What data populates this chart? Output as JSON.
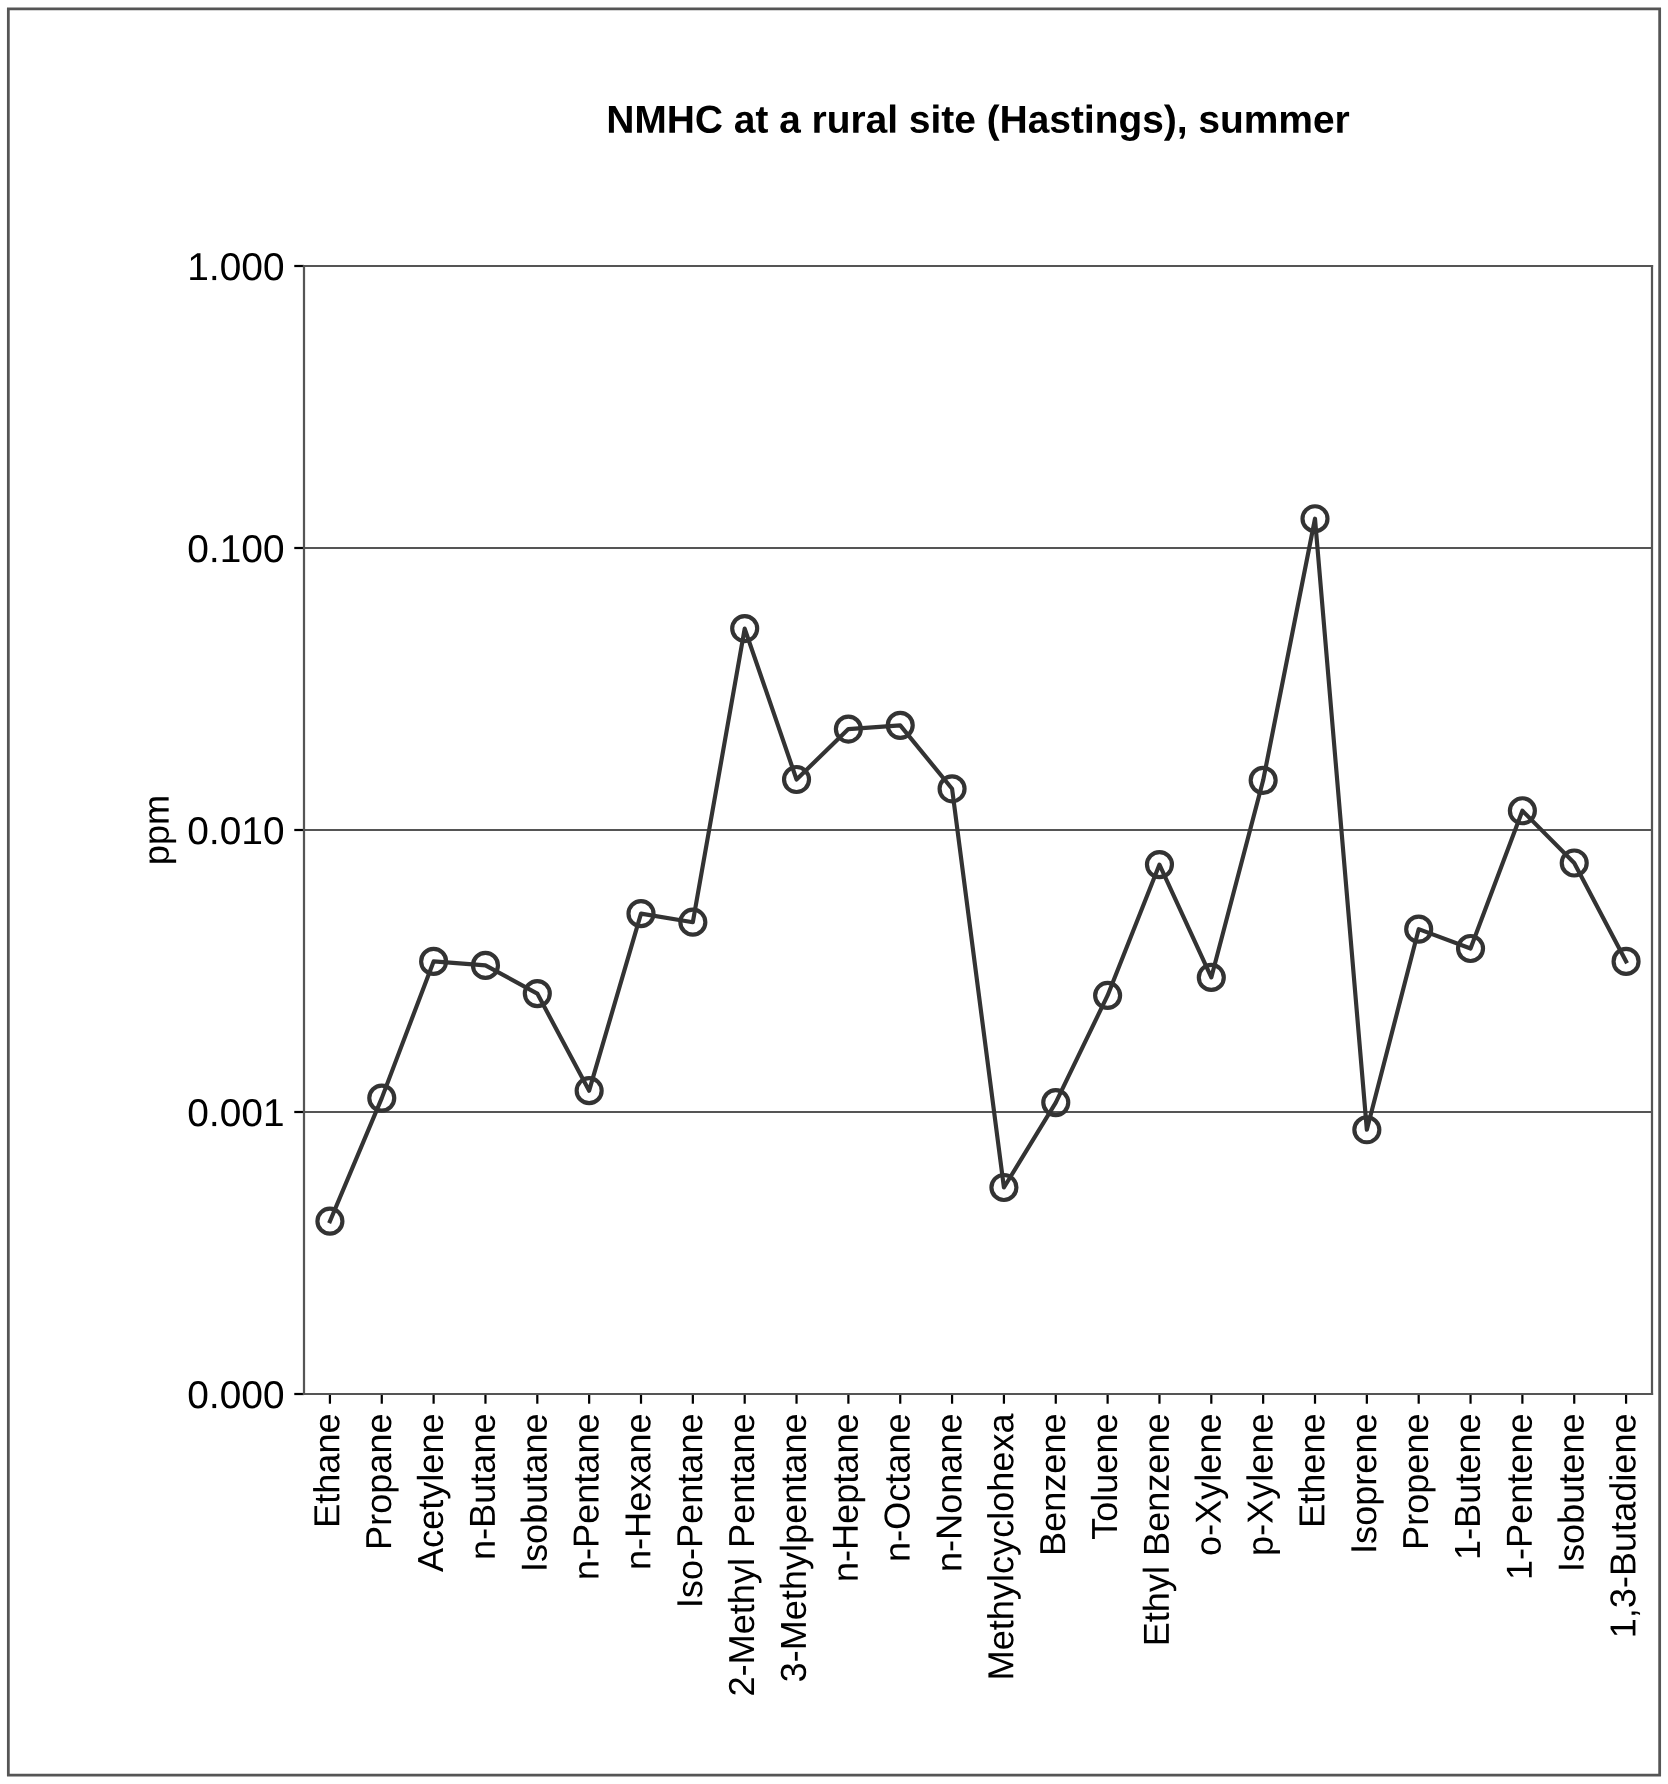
{
  "chart_data": {
    "type": "line",
    "title": "NMHC at a rural site (Hastings), summer",
    "ylabel": "ppm",
    "categories": [
      "Ethane",
      "Propane",
      "Acetylene",
      "n-Butane",
      "Isobutane",
      "n-Pentane",
      "n-Hexane",
      "Iso-Pentane",
      "2-Methyl Pentane",
      "3-Methylpentane",
      "n-Heptane",
      "n-Octane",
      "n-Nonane",
      "Methylcyclohexa",
      "Benzene",
      "Toluene",
      "Ethyl Benzene",
      "o-Xylene",
      "p-Xylene",
      "Ethene",
      "Isoprene",
      "Propene",
      "1-Butene",
      "1-Pentene",
      "Isobutene",
      "1,3-Butadiene"
    ],
    "series": [
      {
        "color": "#333333",
        "values": [
          0.00041,
          0.00112,
          0.00342,
          0.00331,
          0.00263,
          0.00119,
          0.00505,
          0.00471,
          0.0518,
          0.0151,
          0.0228,
          0.0235,
          0.014,
          0.00054,
          0.00108,
          0.00259,
          0.00754,
          0.003,
          0.015,
          0.127,
          0.000865,
          0.00445,
          0.0038,
          0.0117,
          0.00764,
          0.00342
        ]
      }
    ],
    "log": "y",
    "ylim": [
      0.0001,
      1
    ],
    "yticks": [
      {
        "value": 0.0001,
        "label": "0.000"
      },
      {
        "value": 0.001,
        "label": "0.001"
      },
      {
        "value": 0.01,
        "label": "0.010"
      },
      {
        "value": 0.1,
        "label": "0.100"
      },
      {
        "value": 1,
        "label": "1.000"
      }
    ],
    "grid": "y",
    "marker": "circle",
    "line_style": "solid",
    "legend": false
  }
}
